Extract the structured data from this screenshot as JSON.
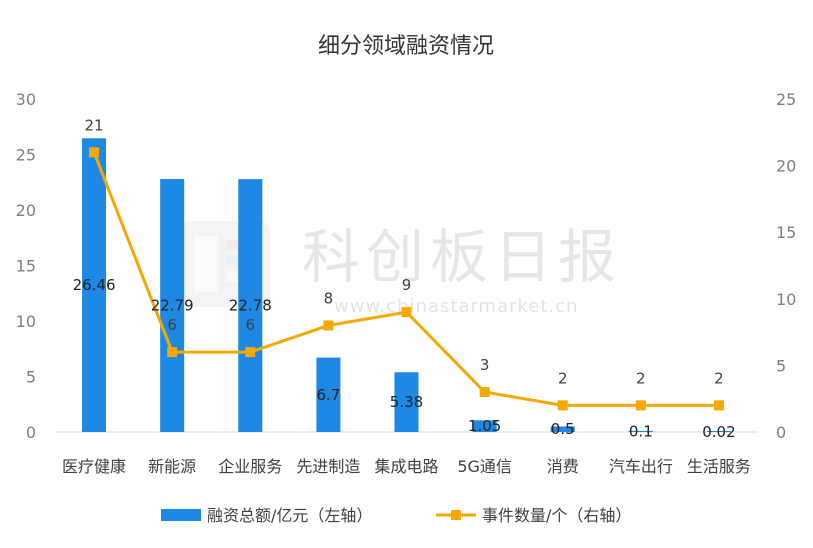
{
  "watermark": {
    "name": "科创板日报",
    "url": "www.chinastarmarket.cn"
  },
  "colors": {
    "bar": "#1e88e5",
    "line": "#f5a800",
    "axis": "#d9d9d9"
  },
  "chart_data": {
    "type": "bar",
    "title": "细分领域融资情况",
    "categories": [
      "医疗健康",
      "新能源",
      "企业服务",
      "先进制造",
      "集成电路",
      "5G通信",
      "消费",
      "汽车出行",
      "生活服务"
    ],
    "series": [
      {
        "name": "融资总额/亿元（左轴）",
        "type": "bar",
        "axis": "left",
        "values": [
          26.46,
          22.79,
          22.78,
          6.7,
          5.38,
          1.05,
          0.5,
          0.1,
          0.02
        ],
        "labels": [
          "26.46",
          "22.79",
          "22.78",
          "6.7",
          "5.38",
          "1.05",
          "0.5",
          "0.1",
          "0.02"
        ]
      },
      {
        "name": "事件数量/个（右轴）",
        "type": "line",
        "axis": "right",
        "values": [
          21,
          6,
          6,
          8,
          9,
          3,
          2,
          2,
          2
        ],
        "labels": [
          "21",
          "6",
          "6",
          "8",
          "9",
          "3",
          "2",
          "2",
          "2"
        ]
      }
    ],
    "y_left": {
      "ylim": [
        0,
        30
      ],
      "ticks": [
        "0",
        "5",
        "10",
        "15",
        "20",
        "25",
        "30"
      ]
    },
    "y_right": {
      "ylim": [
        0,
        25
      ],
      "ticks": [
        "0",
        "5",
        "10",
        "15",
        "20",
        "25"
      ]
    },
    "grid": false,
    "legend": "bottom"
  }
}
